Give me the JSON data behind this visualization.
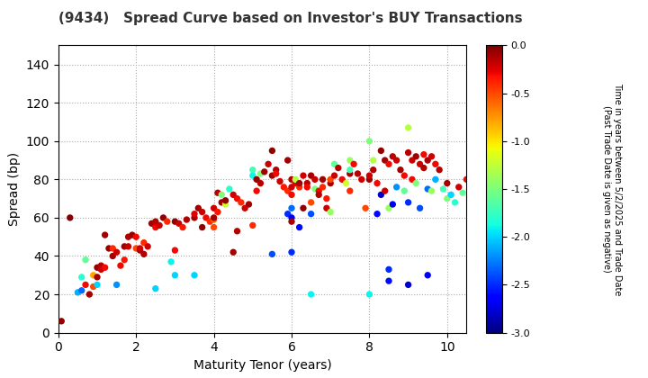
{
  "title": "(9434)   Spread Curve based on Investor's BUY Transactions",
  "xlabel": "Maturity Tenor (years)",
  "ylabel": "Spread (bp)",
  "colorbar_label": "Time in years between 5/2/2025 and Trade Date\n(Past Trade Date is given as negative)",
  "xlim": [
    0,
    10.5
  ],
  "ylim": [
    0,
    150
  ],
  "xticks": [
    0,
    2,
    4,
    6,
    8,
    10
  ],
  "yticks": [
    0,
    20,
    40,
    60,
    80,
    100,
    120,
    140
  ],
  "cmap": "jet",
  "vmin": -3.0,
  "vmax": 0.0,
  "points": [
    [
      0.08,
      6,
      -0.05
    ],
    [
      0.3,
      60,
      -0.02
    ],
    [
      0.5,
      21,
      -2.1
    ],
    [
      0.6,
      29,
      -1.8
    ],
    [
      0.6,
      22,
      -2.3
    ],
    [
      0.7,
      25,
      -0.3
    ],
    [
      0.7,
      38,
      -1.6
    ],
    [
      0.8,
      20,
      -0.1
    ],
    [
      0.9,
      24,
      -0.5
    ],
    [
      0.9,
      30,
      -0.8
    ],
    [
      1.0,
      29,
      -0.1
    ],
    [
      1.0,
      34,
      -0.05
    ],
    [
      1.1,
      35,
      -0.15
    ],
    [
      1.1,
      33,
      -0.2
    ],
    [
      1.2,
      34,
      -0.3
    ],
    [
      1.2,
      51,
      -0.1
    ],
    [
      1.3,
      44,
      -0.05
    ],
    [
      1.4,
      40,
      -0.1
    ],
    [
      1.4,
      44,
      -0.4
    ],
    [
      1.5,
      42,
      -0.2
    ],
    [
      1.6,
      35,
      -0.3
    ],
    [
      1.7,
      38,
      -0.35
    ],
    [
      1.7,
      45,
      -0.1
    ],
    [
      1.8,
      45,
      -0.2
    ],
    [
      1.8,
      50,
      -0.15
    ],
    [
      1.9,
      51,
      -0.05
    ],
    [
      2.0,
      44,
      -0.5
    ],
    [
      2.0,
      50,
      -0.3
    ],
    [
      2.1,
      43,
      -0.1
    ],
    [
      2.1,
      44,
      -0.2
    ],
    [
      2.2,
      41,
      -0.15
    ],
    [
      2.2,
      47,
      -0.4
    ],
    [
      2.3,
      45,
      -0.2
    ],
    [
      2.4,
      57,
      -0.1
    ],
    [
      2.5,
      55,
      -0.3
    ],
    [
      2.5,
      58,
      -0.15
    ],
    [
      2.6,
      56,
      -0.2
    ],
    [
      2.7,
      60,
      -0.05
    ],
    [
      2.8,
      58,
      -0.4
    ],
    [
      3.0,
      43,
      -0.3
    ],
    [
      3.0,
      58,
      -0.05
    ],
    [
      3.1,
      57,
      -0.2
    ],
    [
      3.2,
      55,
      -0.35
    ],
    [
      3.3,
      59,
      -0.15
    ],
    [
      3.5,
      60,
      -0.1
    ],
    [
      3.5,
      62,
      -0.25
    ],
    [
      3.6,
      65,
      -0.1
    ],
    [
      3.7,
      63,
      -0.2
    ],
    [
      3.7,
      55,
      -0.05
    ],
    [
      3.8,
      60,
      -0.3
    ],
    [
      3.9,
      58,
      -0.4
    ],
    [
      4.0,
      59,
      -0.6
    ],
    [
      4.0,
      65,
      -0.2
    ],
    [
      4.0,
      60,
      -0.1
    ],
    [
      4.1,
      73,
      -0.15
    ],
    [
      4.1,
      63,
      -0.35
    ],
    [
      4.2,
      68,
      -0.1
    ],
    [
      4.2,
      72,
      -1.5
    ],
    [
      4.3,
      67,
      -1.2
    ],
    [
      4.3,
      69,
      -0.05
    ],
    [
      4.4,
      75,
      -1.8
    ],
    [
      4.5,
      72,
      -0.2
    ],
    [
      4.6,
      70,
      -0.3
    ],
    [
      4.6,
      53,
      -0.15
    ],
    [
      4.7,
      68,
      -0.4
    ],
    [
      4.8,
      65,
      -0.2
    ],
    [
      4.9,
      67,
      -0.1
    ],
    [
      5.0,
      82,
      -1.9
    ],
    [
      5.0,
      85,
      -1.7
    ],
    [
      5.1,
      80,
      -0.05
    ],
    [
      5.1,
      74,
      -0.3
    ],
    [
      5.2,
      78,
      -0.15
    ],
    [
      5.2,
      83,
      -1.5
    ],
    [
      5.3,
      84,
      -0.1
    ],
    [
      5.4,
      88,
      -0.2
    ],
    [
      5.5,
      82,
      -0.1
    ],
    [
      5.5,
      95,
      -0.05
    ],
    [
      5.6,
      85,
      -0.15
    ],
    [
      5.6,
      83,
      -0.3
    ],
    [
      5.7,
      79,
      -0.2
    ],
    [
      5.8,
      76,
      -0.35
    ],
    [
      5.9,
      74,
      -0.4
    ],
    [
      5.9,
      90,
      -0.1
    ],
    [
      5.9,
      62,
      -2.5
    ],
    [
      6.0,
      76,
      -0.2
    ],
    [
      6.0,
      80,
      -0.15
    ],
    [
      6.0,
      72,
      -0.3
    ],
    [
      6.0,
      65,
      -2.3
    ],
    [
      6.0,
      60,
      -2.7
    ],
    [
      6.0,
      42,
      -2.5
    ],
    [
      6.1,
      78,
      -0.25
    ],
    [
      6.1,
      80,
      -1.3
    ],
    [
      6.2,
      76,
      -0.4
    ],
    [
      6.2,
      78,
      -0.1
    ],
    [
      6.2,
      55,
      -2.6
    ],
    [
      6.3,
      82,
      -0.2
    ],
    [
      6.3,
      65,
      -0.05
    ],
    [
      6.4,
      78,
      -0.15
    ],
    [
      6.4,
      76,
      -0.3
    ],
    [
      6.5,
      68,
      -0.5
    ],
    [
      6.5,
      82,
      -0.1
    ],
    [
      6.5,
      62,
      -2.4
    ],
    [
      6.6,
      80,
      -0.2
    ],
    [
      6.6,
      75,
      -1.5
    ],
    [
      6.7,
      74,
      -0.3
    ],
    [
      6.7,
      72,
      -0.15
    ],
    [
      6.8,
      80,
      -0.1
    ],
    [
      6.8,
      76,
      -0.4
    ],
    [
      6.9,
      65,
      -0.2
    ],
    [
      6.9,
      70,
      -0.35
    ],
    [
      7.0,
      78,
      -0.1
    ],
    [
      7.0,
      80,
      -0.5
    ],
    [
      7.0,
      63,
      -1.4
    ],
    [
      7.1,
      82,
      -0.2
    ],
    [
      7.1,
      88,
      -1.6
    ],
    [
      7.2,
      86,
      -0.15
    ],
    [
      7.3,
      80,
      -0.3
    ],
    [
      7.4,
      78,
      -1.2
    ],
    [
      7.5,
      90,
      -1.4
    ],
    [
      7.5,
      83,
      -0.1
    ],
    [
      7.5,
      85,
      -1.7
    ],
    [
      7.6,
      88,
      -0.3
    ],
    [
      7.7,
      83,
      -0.15
    ],
    [
      7.8,
      80,
      -0.2
    ],
    [
      7.9,
      65,
      -0.5
    ],
    [
      8.0,
      80,
      -0.1
    ],
    [
      8.0,
      82,
      -0.2
    ],
    [
      8.0,
      100,
      -1.5
    ],
    [
      8.1,
      90,
      -1.3
    ],
    [
      8.1,
      85,
      -0.15
    ],
    [
      8.2,
      78,
      -0.3
    ],
    [
      8.2,
      62,
      -2.6
    ],
    [
      8.3,
      95,
      -0.05
    ],
    [
      8.3,
      72,
      -2.8
    ],
    [
      8.4,
      74,
      -0.2
    ],
    [
      8.4,
      90,
      -0.1
    ],
    [
      8.5,
      88,
      -0.3
    ],
    [
      8.5,
      65,
      -1.4
    ],
    [
      8.6,
      92,
      -0.15
    ],
    [
      8.6,
      67,
      -2.7
    ],
    [
      8.7,
      76,
      -2.2
    ],
    [
      8.7,
      90,
      -0.2
    ],
    [
      8.8,
      85,
      -0.1
    ],
    [
      8.9,
      82,
      -0.3
    ],
    [
      8.9,
      74,
      -1.6
    ],
    [
      9.0,
      94,
      -0.15
    ],
    [
      9.0,
      68,
      -2.5
    ],
    [
      9.0,
      107,
      -1.3
    ],
    [
      9.1,
      90,
      -0.2
    ],
    [
      9.1,
      80,
      -0.3
    ],
    [
      9.2,
      92,
      -0.1
    ],
    [
      9.2,
      78,
      -1.5
    ],
    [
      9.3,
      88,
      -0.2
    ],
    [
      9.3,
      65,
      -2.4
    ],
    [
      9.4,
      86,
      -0.15
    ],
    [
      9.4,
      93,
      -0.3
    ],
    [
      9.5,
      90,
      -0.1
    ],
    [
      9.5,
      75,
      -2.3
    ],
    [
      9.6,
      92,
      -0.2
    ],
    [
      9.6,
      74,
      -1.4
    ],
    [
      9.7,
      88,
      -0.3
    ],
    [
      9.7,
      80,
      -2.1
    ],
    [
      9.8,
      85,
      -0.15
    ],
    [
      9.9,
      75,
      -1.7
    ],
    [
      10.0,
      78,
      -0.1
    ],
    [
      10.0,
      70,
      -1.5
    ],
    [
      10.1,
      72,
      -2.0
    ],
    [
      10.2,
      68,
      -1.8
    ],
    [
      10.3,
      76,
      -0.2
    ],
    [
      10.4,
      73,
      -1.6
    ],
    [
      10.5,
      80,
      -0.3
    ],
    [
      2.9,
      37,
      -1.9
    ],
    [
      1.5,
      25,
      -2.2
    ],
    [
      3.5,
      30,
      -2.0
    ],
    [
      4.5,
      42,
      -0.1
    ],
    [
      5.5,
      41,
      -2.4
    ],
    [
      6.5,
      20,
      -1.9
    ],
    [
      8.5,
      27,
      -2.6
    ],
    [
      8.5,
      33,
      -2.5
    ],
    [
      9.0,
      25,
      -2.8
    ],
    [
      6.0,
      58,
      -0.1
    ],
    [
      5.0,
      56,
      -0.4
    ],
    [
      7.5,
      74,
      -0.4
    ],
    [
      4.0,
      55,
      -0.5
    ],
    [
      3.0,
      30,
      -2.0
    ],
    [
      2.5,
      23,
      -2.0
    ],
    [
      1.0,
      25,
      -2.0
    ],
    [
      8.0,
      20,
      -1.9
    ],
    [
      9.5,
      30,
      -2.7
    ]
  ]
}
